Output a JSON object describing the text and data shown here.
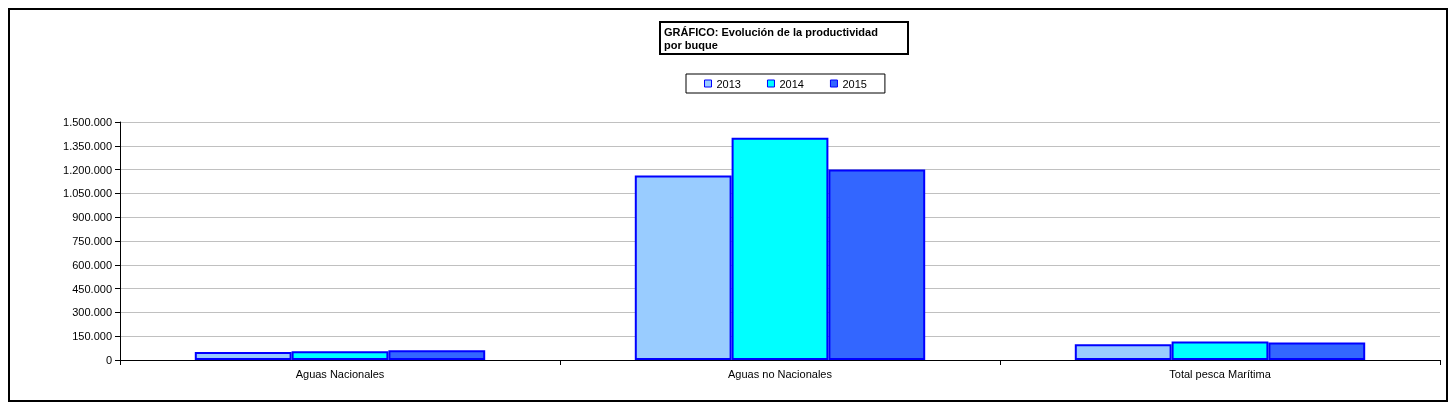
{
  "chart_data": {
    "type": "bar",
    "title": "GRÁFICO: Evolución de la productividad por buque",
    "categories": [
      "Aguas Nacionales",
      "Aguas no Nacionales",
      "Total pesca Marítima"
    ],
    "series": [
      {
        "name": "2013",
        "color": "#99ccff",
        "values": [
          50000,
          1163000,
          99000
        ]
      },
      {
        "name": "2014",
        "color": "#00ffff",
        "values": [
          55000,
          1401000,
          116000
        ]
      },
      {
        "name": "2015",
        "color": "#3366ff",
        "values": [
          61000,
          1201000,
          111000
        ]
      }
    ],
    "ylim": [
      0,
      1500000
    ],
    "yticks": [
      0,
      {
        "value": 150000,
        "label": "150.000"
      },
      {
        "value": 300000,
        "label": "300.000"
      },
      {
        "value": 450000,
        "label": "450.000"
      },
      {
        "value": 600000,
        "label": "600.000"
      },
      {
        "value": 750000,
        "label": "750.000"
      },
      {
        "value": 900000,
        "label": "900.000"
      },
      {
        "value": 1050000,
        "label": "1.050.000"
      },
      {
        "value": 1200000,
        "label": "1.200.000"
      },
      {
        "value": 1350000,
        "label": "1.350.000"
      },
      {
        "value": 1500000,
        "label": "1.500.000"
      }
    ],
    "grid": "y",
    "legend": "top"
  }
}
